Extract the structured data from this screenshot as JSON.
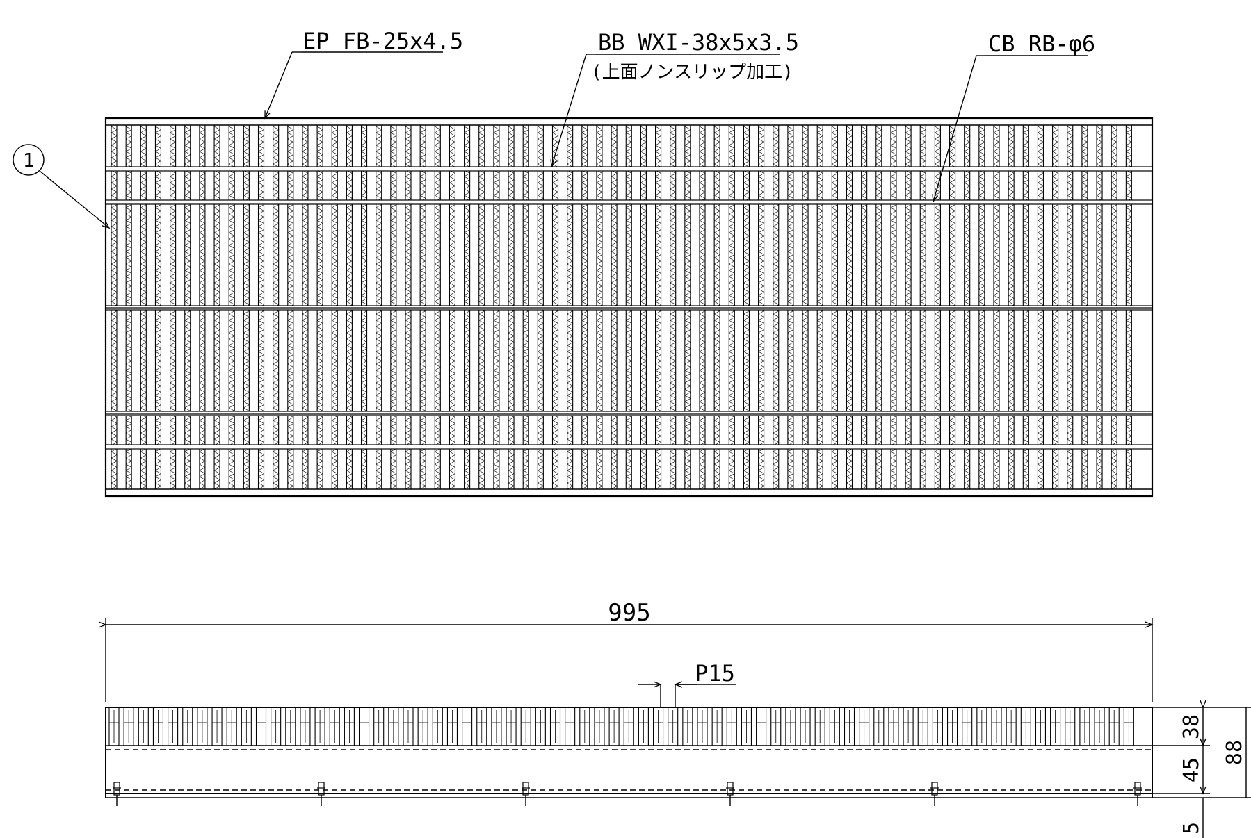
{
  "labels": {
    "end_plate": "EP FB-25x4.5",
    "bearing_bar": "BB WXI-38x5x3.5",
    "bearing_bar_note": "(上面ノンスリップ加工)",
    "cross_bar": "CB RB-φ6",
    "part_number": "1"
  },
  "dimensions": {
    "length": "995",
    "pitch": "P15",
    "bearing_height": "38",
    "mid_height": "45",
    "total_height": "88",
    "base_height": "5"
  },
  "colors": {
    "line": "#000000",
    "background": "#ffffff"
  }
}
